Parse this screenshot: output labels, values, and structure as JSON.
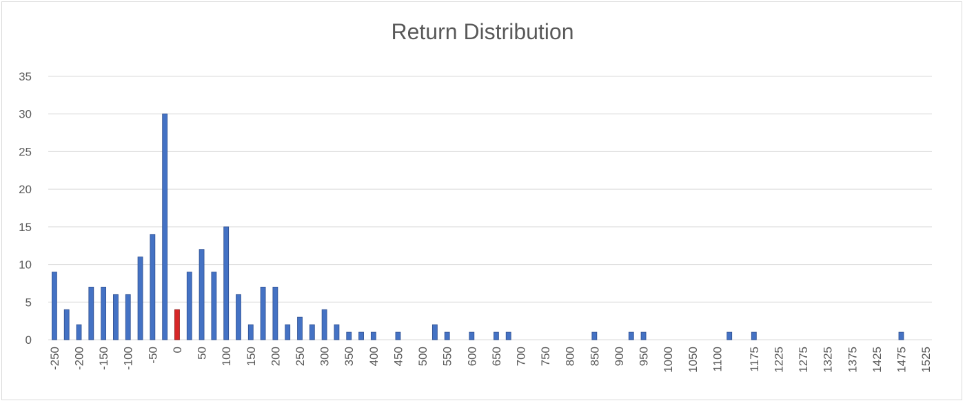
{
  "chart_data": {
    "type": "bar",
    "title": "Return Distribution",
    "xlabel": "",
    "ylabel": "",
    "ylim": [
      0,
      35
    ],
    "yticks": [
      0,
      5,
      10,
      15,
      20,
      25,
      30,
      35
    ],
    "grid": true,
    "legend": "none",
    "colors": {
      "bar": "#4472c4",
      "bar_edge": "#2f4f8f",
      "highlight": "#d62728",
      "grid": "#d9d9d9",
      "text": "#595959"
    },
    "highlight_category": "0",
    "categories": [
      "-250",
      "-225",
      "-200",
      "-175",
      "-150",
      "-125",
      "-100",
      "-75",
      "-50",
      "-25",
      "0",
      "25",
      "50",
      "75",
      "100",
      "125",
      "150",
      "175",
      "200",
      "225",
      "250",
      "275",
      "300",
      "325",
      "350",
      "375",
      "400",
      "425",
      "450",
      "475",
      "500",
      "525",
      "550",
      "575",
      "600",
      "625",
      "650",
      "675",
      "700",
      "725",
      "750",
      "775",
      "800",
      "825",
      "850",
      "875",
      "900",
      "925",
      "950",
      "975",
      "1000",
      "1025",
      "1050",
      "1075",
      "1100",
      "1125",
      "1150",
      "1175",
      "1200",
      "1225",
      "1250",
      "1275",
      "1300",
      "1325",
      "1350",
      "1375",
      "1400",
      "1425",
      "1450",
      "1475",
      "1500",
      "1525"
    ],
    "values": [
      9,
      4,
      2,
      7,
      7,
      6,
      6,
      11,
      14,
      30,
      4,
      9,
      12,
      9,
      15,
      6,
      2,
      7,
      7,
      2,
      3,
      2,
      4,
      2,
      1,
      1,
      1,
      0,
      1,
      0,
      0,
      2,
      1,
      0,
      1,
      0,
      1,
      1,
      0,
      0,
      0,
      0,
      0,
      0,
      1,
      0,
      0,
      1,
      1,
      0,
      0,
      0,
      0,
      0,
      0,
      1,
      0,
      1,
      0,
      0,
      0,
      0,
      0,
      0,
      0,
      0,
      0,
      0,
      0,
      1,
      0,
      0
    ],
    "xtick_labels": [
      "-250",
      "-200",
      "-150",
      "-100",
      "-50",
      "0",
      "50",
      "100",
      "150",
      "200",
      "250",
      "300",
      "350",
      "400",
      "450",
      "500",
      "550",
      "600",
      "650",
      "700",
      "750",
      "800",
      "850",
      "900",
      "950",
      "1000",
      "1050",
      "1100",
      "1175",
      "1225",
      "1275",
      "1325",
      "1375",
      "1425",
      "1475",
      "1525"
    ]
  }
}
